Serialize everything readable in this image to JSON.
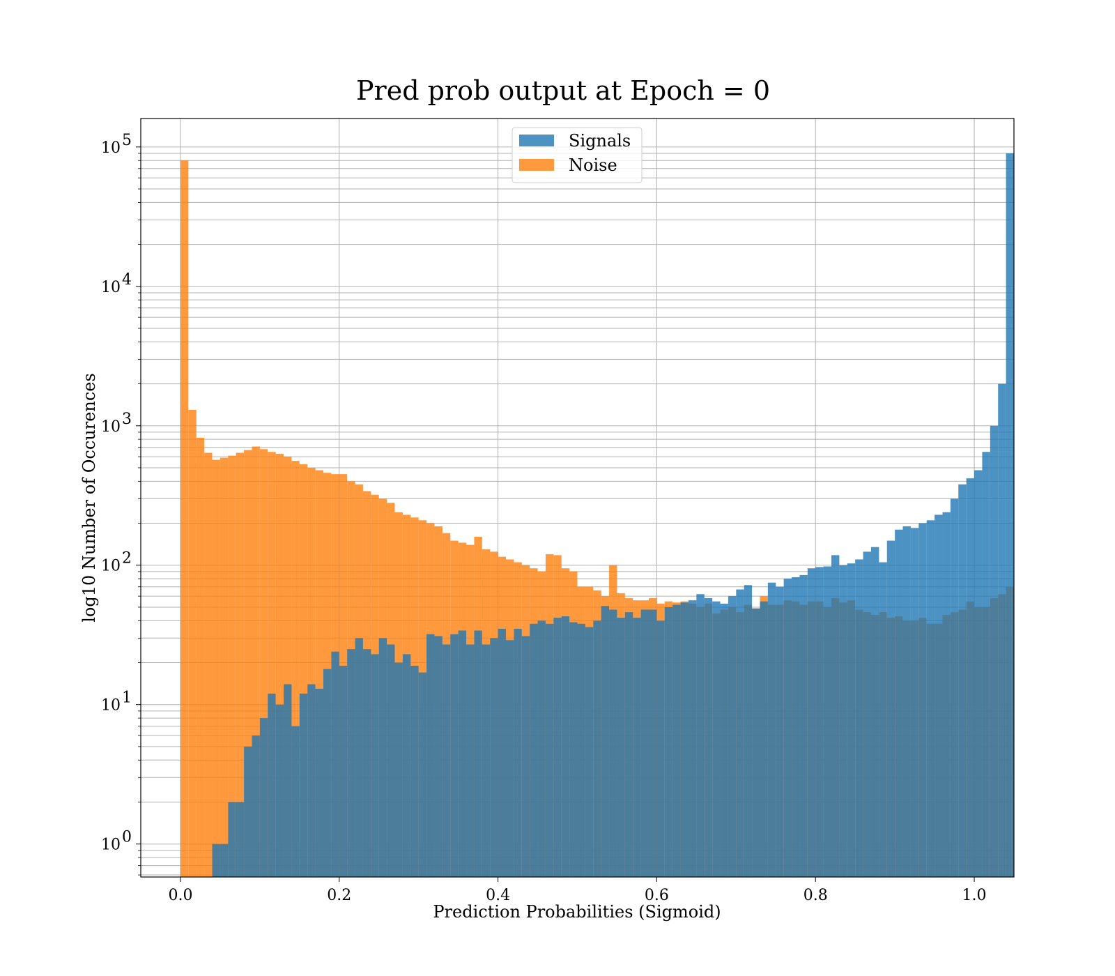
{
  "chart_data": {
    "type": "bar",
    "title": "Pred prob output at Epoch = 0",
    "xlabel": "Prediction Probabilities (Sigmoid)",
    "ylabel": "log10 Number of Occurences",
    "y_scale": "log",
    "xlim": [
      -0.05,
      1.05
    ],
    "ylim": [
      0.58,
      160000
    ],
    "x_ticks": [
      {
        "value": 0.0,
        "label": "0.0"
      },
      {
        "value": 0.2,
        "label": "0.2"
      },
      {
        "value": 0.4,
        "label": "0.4"
      },
      {
        "value": 0.6,
        "label": "0.6"
      },
      {
        "value": 0.8,
        "label": "0.8"
      },
      {
        "value": 1.0,
        "label": "1.0"
      }
    ],
    "y_ticks": [
      {
        "value": 1,
        "base": "10",
        "exp": "0"
      },
      {
        "value": 10,
        "base": "10",
        "exp": "1"
      },
      {
        "value": 100,
        "base": "10",
        "exp": "2"
      },
      {
        "value": 1000,
        "base": "10",
        "exp": "3"
      },
      {
        "value": 10000,
        "base": "10",
        "exp": "4"
      },
      {
        "value": 100000,
        "base": "10",
        "exp": "5"
      }
    ],
    "grid": true,
    "legend_position": "top-center",
    "bin_start": 0.0,
    "bin_width": 0.01,
    "series": [
      {
        "name": "Signals",
        "color": "#1f77b4",
        "values": [
          0,
          0,
          0,
          0,
          1,
          1,
          2,
          2,
          5,
          6,
          8,
          12,
          10,
          14,
          7,
          12,
          14,
          13,
          18,
          24,
          19,
          25,
          30,
          25,
          23,
          30,
          27,
          20,
          23,
          19,
          17,
          32,
          31,
          27,
          32,
          34,
          27,
          34,
          27,
          30,
          35,
          29,
          35,
          31,
          38,
          40,
          38,
          42,
          43,
          39,
          38,
          36,
          40,
          51,
          48,
          42,
          46,
          42,
          48,
          48,
          40,
          50,
          52,
          54,
          56,
          62,
          58,
          55,
          53,
          60,
          67,
          72,
          49,
          55,
          75,
          70,
          80,
          82,
          85,
          95,
          97,
          98,
          118,
          100,
          103,
          110,
          125,
          135,
          105,
          150,
          180,
          190,
          185,
          200,
          210,
          230,
          240,
          300,
          380,
          420,
          480,
          650,
          1000,
          2000,
          90000
        ]
      },
      {
        "name": "Noise",
        "color": "#ff7f0e",
        "values": [
          80000,
          1300,
          820,
          640,
          570,
          590,
          610,
          640,
          670,
          710,
          680,
          650,
          630,
          600,
          560,
          530,
          500,
          480,
          460,
          450,
          450,
          400,
          380,
          340,
          320,
          300,
          280,
          240,
          230,
          220,
          210,
          200,
          190,
          170,
          150,
          145,
          140,
          160,
          130,
          125,
          115,
          110,
          105,
          100,
          95,
          90,
          120,
          118,
          95,
          90,
          70,
          70,
          66,
          60,
          100,
          63,
          58,
          56,
          56,
          58,
          53,
          55,
          54,
          55,
          53,
          50,
          53,
          45,
          48,
          50,
          46,
          52,
          49,
          60,
          52,
          52,
          56,
          55,
          52,
          55,
          55,
          50,
          58,
          54,
          56,
          48,
          46,
          44,
          46,
          42,
          43,
          40,
          40,
          42,
          38,
          38,
          44,
          46,
          48,
          55,
          50,
          50,
          58,
          62,
          70
        ]
      }
    ]
  }
}
